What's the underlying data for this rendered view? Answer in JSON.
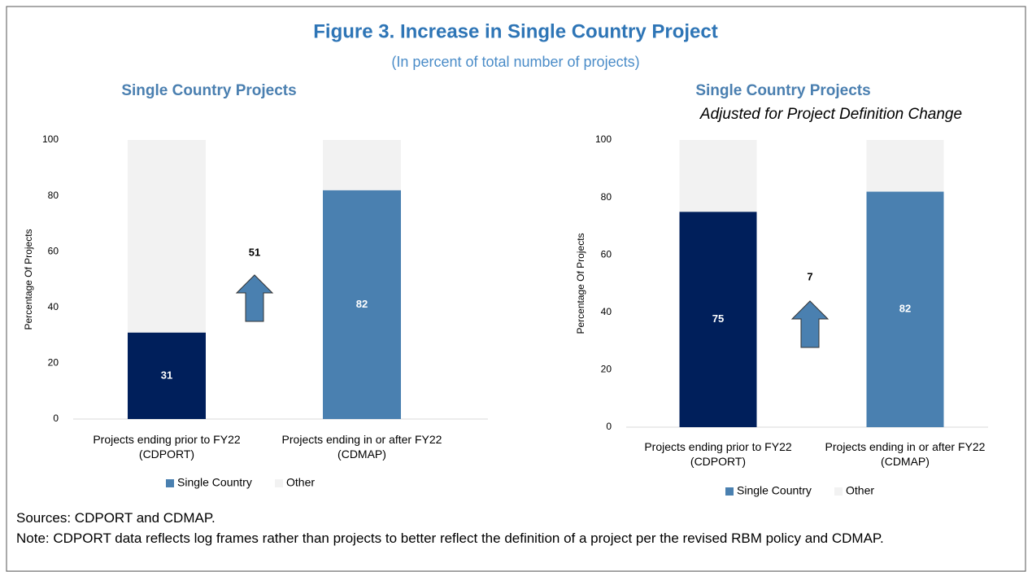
{
  "title": "Figure 3. Increase in Single Country Project",
  "subtitle": "(In percent of total number of projects)",
  "chart_data": [
    {
      "type": "bar",
      "stacked": true,
      "title": "Single Country Projects",
      "y_label": "Percentage Of Projects",
      "categories": [
        "Projects ending prior to FY22 (CDPORT)",
        "Projects ending in or after FY22 (CDMAP)"
      ],
      "series": [
        {
          "name": "Single Country",
          "color": "#4a80b0",
          "point_colors": [
            "#001f5b",
            "#4a80b0"
          ],
          "values": [
            31,
            82
          ],
          "data_labels": true
        },
        {
          "name": "Other",
          "color": "#f2f2f2",
          "values": [
            69,
            18
          ]
        }
      ],
      "ylim": [
        0,
        100
      ],
      "yticks": [
        0,
        20,
        40,
        60,
        80,
        100
      ],
      "annotation": 51
    },
    {
      "type": "bar",
      "stacked": true,
      "title": "Single Country Projects",
      "subtitle": "Adjusted for Project Definition Change",
      "y_label": "Percentage Of Projects",
      "categories": [
        "Projects ending prior to FY22 (CDPORT)",
        "Projects ending in or after FY22 (CDMAP)"
      ],
      "series": [
        {
          "name": "Single Country",
          "color": "#4a80b0",
          "point_colors": [
            "#001f5b",
            "#4a80b0"
          ],
          "values": [
            75,
            82
          ],
          "data_labels": true
        },
        {
          "name": "Other",
          "color": "#f2f2f2",
          "values": [
            25,
            18
          ]
        }
      ],
      "ylim": [
        0,
        100
      ],
      "yticks": [
        0,
        20,
        40,
        60,
        80,
        100
      ],
      "annotation": 7
    }
  ],
  "sources": "Sources: CDPORT and CDMAP.",
  "note": "Note: CDPORT data reflects log frames rather than projects to better reflect the definition of a project per the revised RBM policy and CDMAP."
}
